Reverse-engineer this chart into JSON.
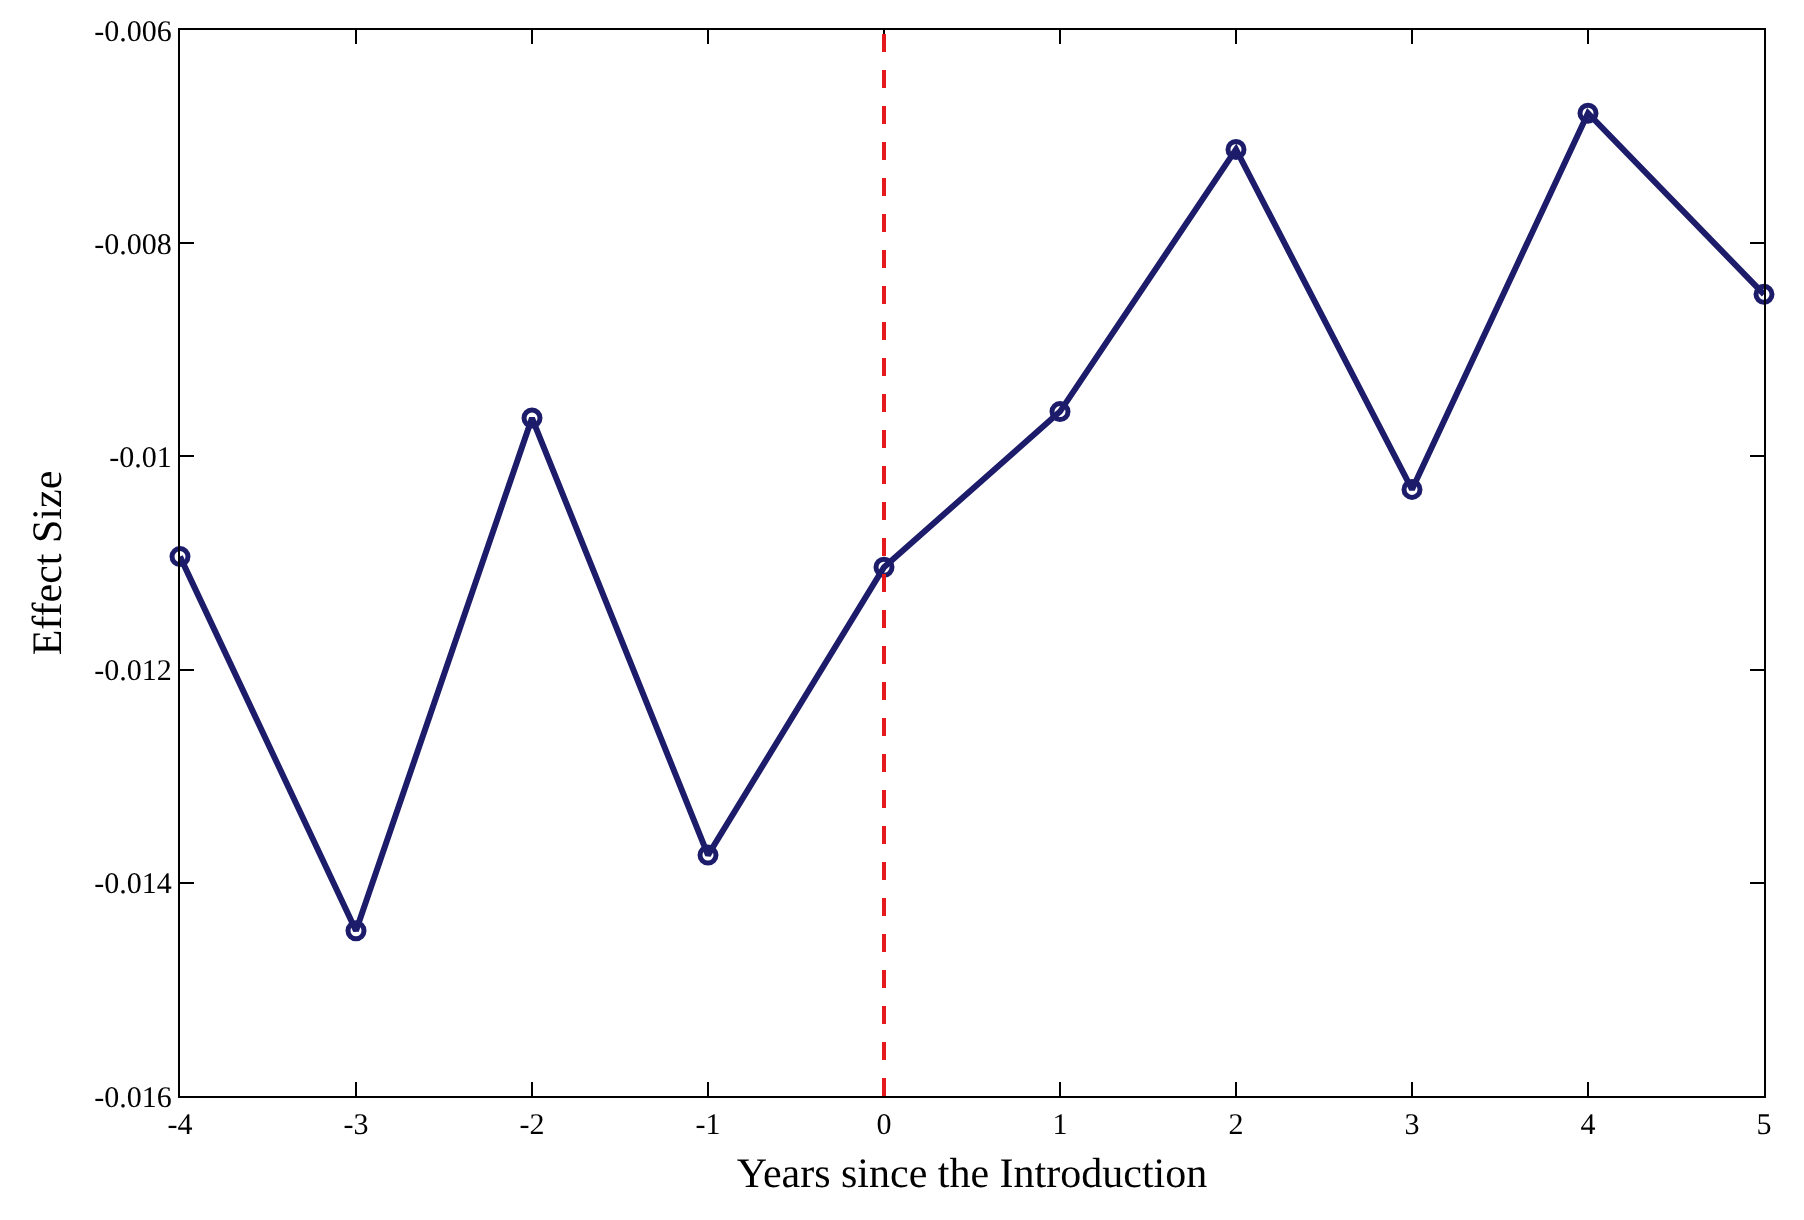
{
  "chart_data": {
    "type": "line",
    "xlabel": "Years since the Introduction",
    "ylabel": "Effect Size",
    "x": [
      -4,
      -3,
      -2,
      -1,
      0,
      1,
      2,
      3,
      4,
      5
    ],
    "series": [
      {
        "color": "#1c1c6b",
        "values": [
          -0.01094,
          -0.01445,
          -0.00964,
          -0.01374,
          -0.01104,
          -0.00958,
          -0.00712,
          -0.01031,
          -0.00678,
          -0.00848
        ]
      }
    ],
    "xlim": [
      -4,
      5
    ],
    "xticks": [
      -4,
      -3,
      -2,
      -1,
      0,
      1,
      2,
      3,
      4,
      5
    ],
    "ylim": [
      -0.016,
      -0.006
    ],
    "yticks": [
      -0.016,
      -0.014,
      -0.012,
      -0.01,
      -0.008,
      -0.006
    ],
    "ref_lines": [
      {
        "axis": "x",
        "value": 0,
        "color": "#e41a1c",
        "line_style": "dashed"
      }
    ],
    "marker": "circle",
    "line_style": "solid",
    "grid": false
  }
}
